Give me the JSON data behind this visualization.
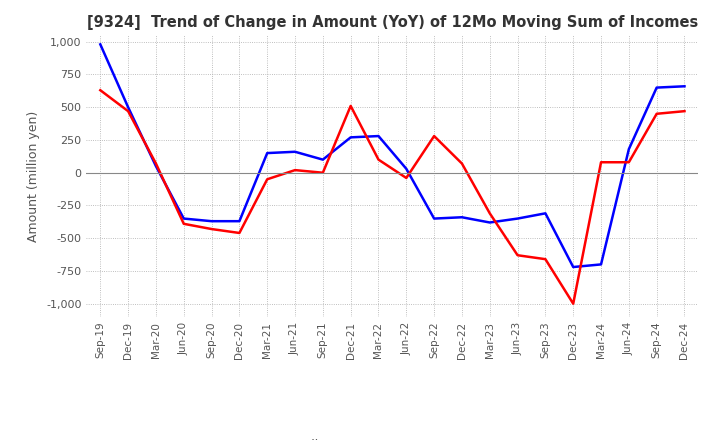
{
  "title": "[9324]  Trend of Change in Amount (YoY) of 12Mo Moving Sum of Incomes",
  "ylabel": "Amount (million yen)",
  "yticks": [
    1000,
    750,
    500,
    250,
    0,
    -250,
    -500,
    -750,
    -1000
  ],
  "ylim": [
    -1100,
    1050
  ],
  "x_labels": [
    "Sep-19",
    "Dec-19",
    "Mar-20",
    "Jun-20",
    "Sep-20",
    "Dec-20",
    "Mar-21",
    "Jun-21",
    "Sep-21",
    "Dec-21",
    "Mar-22",
    "Jun-22",
    "Sep-22",
    "Dec-22",
    "Mar-23",
    "Jun-23",
    "Sep-23",
    "Dec-23",
    "Mar-24",
    "Jun-24",
    "Sep-24",
    "Dec-24"
  ],
  "ordinary_income": [
    980,
    500,
    50,
    -350,
    -370,
    -370,
    150,
    160,
    100,
    270,
    280,
    30,
    -350,
    -340,
    -380,
    -350,
    -310,
    -720,
    -700,
    180,
    650,
    660
  ],
  "net_income": [
    630,
    470,
    70,
    -390,
    -430,
    -460,
    -50,
    20,
    0,
    510,
    100,
    -40,
    280,
    70,
    -310,
    -630,
    -660,
    -1000,
    80,
    80,
    450,
    470
  ],
  "ordinary_color": "#0000ff",
  "net_color": "#ff0000",
  "background_color": "#ffffff",
  "grid_color": "#aaaaaa",
  "title_color": "#333333",
  "tick_color": "#555555",
  "zero_line_color": "#888888"
}
